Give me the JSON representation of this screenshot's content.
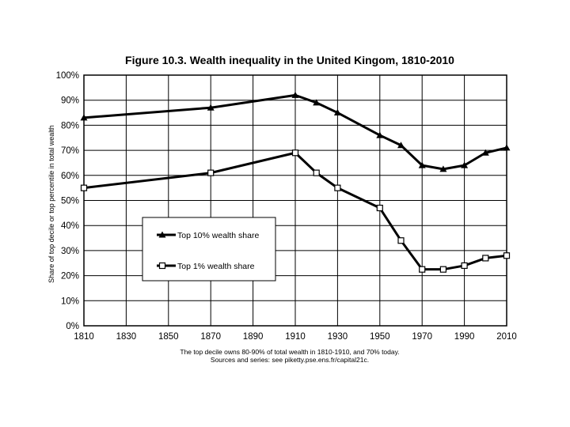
{
  "chart_data": {
    "type": "line",
    "title": "Figure 10.3. Wealth inequality in the United Kingom, 1810-2010",
    "ylabel": "Share of top decile or top percentile in total wealth",
    "xlabel": "",
    "xlim": [
      1810,
      2010
    ],
    "ylim": [
      0,
      100
    ],
    "x_ticks": [
      "1810",
      "1830",
      "1850",
      "1870",
      "1890",
      "1910",
      "1930",
      "1950",
      "1970",
      "1990",
      "2010"
    ],
    "y_ticks": [
      "0%",
      "10%",
      "20%",
      "30%",
      "40%",
      "50%",
      "60%",
      "70%",
      "80%",
      "90%",
      "100%"
    ],
    "grid": true,
    "legend_position": "center-left",
    "series": [
      {
        "name": "Top 10% wealth share",
        "marker": "filled-triangle",
        "points": [
          [
            1810,
            83
          ],
          [
            1870,
            87
          ],
          [
            1910,
            92
          ],
          [
            1920,
            89
          ],
          [
            1930,
            85
          ],
          [
            1950,
            76
          ],
          [
            1960,
            72
          ],
          [
            1970,
            64
          ],
          [
            1980,
            62.5
          ],
          [
            1990,
            64
          ],
          [
            2000,
            69
          ],
          [
            2010,
            71
          ]
        ]
      },
      {
        "name": "Top 1% wealth share",
        "marker": "hollow-square",
        "points": [
          [
            1810,
            55
          ],
          [
            1870,
            61
          ],
          [
            1910,
            69
          ],
          [
            1920,
            61
          ],
          [
            1930,
            55
          ],
          [
            1950,
            47
          ],
          [
            1960,
            34
          ],
          [
            1970,
            22.5
          ],
          [
            1980,
            22.5
          ],
          [
            1990,
            24
          ],
          [
            2000,
            27
          ],
          [
            2010,
            28
          ]
        ]
      }
    ],
    "notes": [
      "The top decile owns 80-90% of total wealth in 1810-1910, and 70% today.",
      "Sources and series: see piketty.pse.ens.fr/capital21c."
    ]
  }
}
